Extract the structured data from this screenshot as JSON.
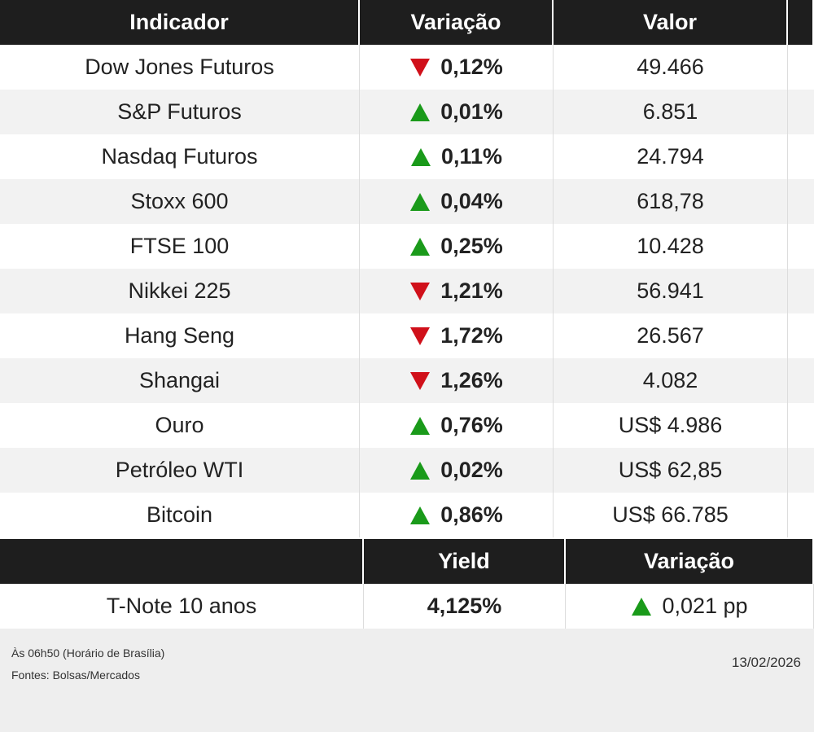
{
  "table": {
    "headers": [
      "Indicador",
      "Variação",
      "Valor"
    ],
    "rows": [
      {
        "name": "Dow Jones Futuros",
        "direction": "down",
        "change": "0,12%",
        "value": "49.466"
      },
      {
        "name": "S&P Futuros",
        "direction": "up",
        "change": "0,01%",
        "value": "6.851"
      },
      {
        "name": "Nasdaq Futuros",
        "direction": "up",
        "change": "0,11%",
        "value": "24.794"
      },
      {
        "name": "Stoxx 600",
        "direction": "up",
        "change": "0,04%",
        "value": "618,78"
      },
      {
        "name": "FTSE 100",
        "direction": "up",
        "change": "0,25%",
        "value": "10.428"
      },
      {
        "name": "Nikkei 225",
        "direction": "down",
        "change": "1,21%",
        "value": "56.941"
      },
      {
        "name": "Hang Seng",
        "direction": "down",
        "change": "1,72%",
        "value": "26.567"
      },
      {
        "name": "Shangai",
        "direction": "down",
        "change": "1,26%",
        "value": "4.082"
      },
      {
        "name": "Ouro",
        "direction": "up",
        "change": "0,76%",
        "value": "US$ 4.986"
      },
      {
        "name": "Petróleo WTI",
        "direction": "up",
        "change": "0,02%",
        "value": "US$ 62,85"
      },
      {
        "name": "Bitcoin",
        "direction": "up",
        "change": "0,86%",
        "value": "US$ 66.785"
      }
    ]
  },
  "yield_table": {
    "headers": [
      "Yield",
      "Variação"
    ],
    "rows": [
      {
        "name": "T-Note 10 anos",
        "yield": "4,125%",
        "direction": "up",
        "change": "0,021 pp"
      }
    ]
  },
  "footer": {
    "time": "Às 06h50 (Horário de Brasília)",
    "sources": "Fontes: Bolsas/Mercados",
    "date": "13/02/2026"
  }
}
